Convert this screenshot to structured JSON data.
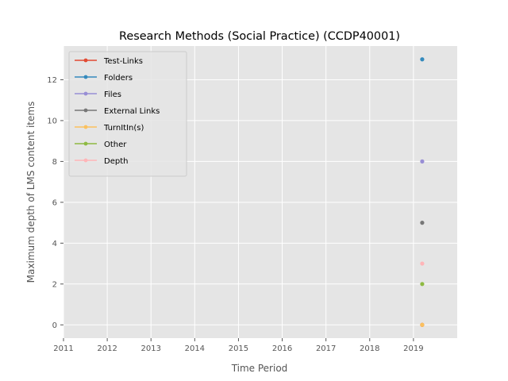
{
  "chart_data": {
    "type": "line",
    "title": "Research Methods (Social Practice) (CCDP40001)",
    "xlabel": "Time Period",
    "ylabel": "Maximum depth of LMS content items",
    "xlim": [
      2011.0,
      2020.0
    ],
    "ylim": [
      -0.65,
      13.65
    ],
    "x_ticks": [
      "2011",
      "2012",
      "2013",
      "2014",
      "2015",
      "2016",
      "2017",
      "2018",
      "2019"
    ],
    "y_ticks": [
      "0",
      "2",
      "4",
      "6",
      "8",
      "10",
      "12"
    ],
    "grid": true,
    "legend_position": "top-left",
    "series": [
      {
        "name": "Test-Links",
        "color": "#E24A33",
        "x": [
          2019.2
        ],
        "y": [
          0
        ]
      },
      {
        "name": "Folders",
        "color": "#348ABD",
        "x": [
          2019.2
        ],
        "y": [
          13
        ]
      },
      {
        "name": "Files",
        "color": "#988ED5",
        "x": [
          2019.2
        ],
        "y": [
          8
        ]
      },
      {
        "name": "External Links",
        "color": "#777777",
        "x": [
          2019.2
        ],
        "y": [
          5
        ]
      },
      {
        "name": "TurnItIn(s)",
        "color": "#FBC15E",
        "x": [
          2019.2
        ],
        "y": [
          0
        ]
      },
      {
        "name": "Other",
        "color": "#8EBA42",
        "x": [
          2019.2
        ],
        "y": [
          2
        ]
      },
      {
        "name": "Depth",
        "color": "#FFB5B8",
        "x": [
          2019.2
        ],
        "y": [
          3
        ]
      }
    ]
  }
}
